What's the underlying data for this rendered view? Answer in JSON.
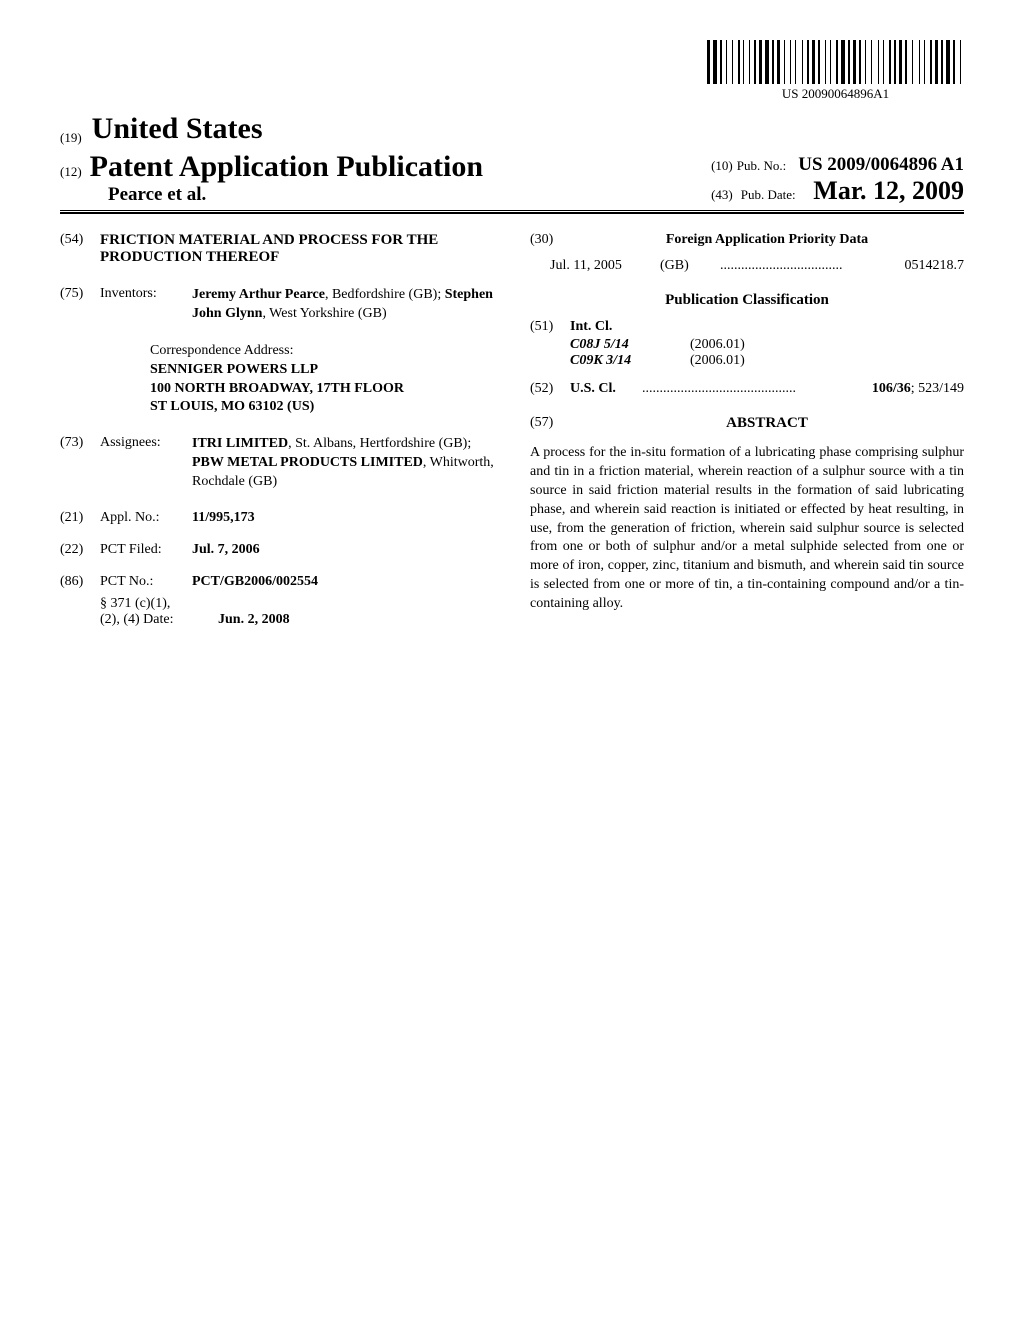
{
  "barcode_text": "US 20090064896A1",
  "office": {
    "code19": "(19)",
    "name": "United States"
  },
  "publication": {
    "code12": "(12)",
    "type": "Patent Application Publication",
    "authors_etal": "Pearce et al.",
    "pubno_code": "(10)",
    "pubno_label": "Pub. No.:",
    "pubno_value": "US 2009/0064896 A1",
    "pubdate_code": "(43)",
    "pubdate_label": "Pub. Date:",
    "pubdate_value": "Mar. 12, 2009"
  },
  "title": {
    "code": "(54)",
    "text": "FRICTION MATERIAL AND PROCESS FOR THE PRODUCTION THEREOF"
  },
  "inventors": {
    "code": "(75)",
    "label": "Inventors:",
    "line1_bold": "Jeremy Arthur Pearce",
    "line1_rest": ", Bedfordshire (GB); ",
    "line2_bold": "Stephen John Glynn",
    "line2_rest": ", West Yorkshire (GB)"
  },
  "correspondence": {
    "label": "Correspondence Address:",
    "line1": "SENNIGER POWERS LLP",
    "line2": "100 NORTH BROADWAY, 17TH FLOOR",
    "line3": "ST LOUIS, MO 63102 (US)"
  },
  "assignees": {
    "code": "(73)",
    "label": "Assignees:",
    "a1_bold": "ITRI LIMITED",
    "a1_rest": ", St. Albans, Hertfordshire (GB); ",
    "a2_bold": "PBW METAL PRODUCTS LIMITED",
    "a2_rest": ", Whitworth, Rochdale (GB)"
  },
  "applno": {
    "code": "(21)",
    "label": "Appl. No.:",
    "value": "11/995,173"
  },
  "pctfiled": {
    "code": "(22)",
    "label": "PCT Filed:",
    "value": "Jul. 7, 2006"
  },
  "pctno": {
    "code": "(86)",
    "label": "PCT No.:",
    "value": "PCT/GB2006/002554"
  },
  "p371": {
    "line1": "§ 371 (c)(1),",
    "line2_label": "(2), (4) Date:",
    "line2_value": "Jun. 2, 2008"
  },
  "foreign_priority": {
    "code": "(30)",
    "heading": "Foreign Application Priority Data",
    "date": "Jul. 11, 2005",
    "country": "(GB)",
    "dots": "...................................",
    "number": "0514218.7"
  },
  "pub_classification": {
    "heading": "Publication Classification",
    "intcl_code": "(51)",
    "intcl_label": "Int. Cl.",
    "ipc": [
      {
        "cls": "C08J 5/14",
        "ver": "(2006.01)"
      },
      {
        "cls": "C09K 3/14",
        "ver": "(2006.01)"
      }
    ],
    "uscl_code": "(52)",
    "uscl_label": "U.S. Cl.",
    "uscl_dots": "............................................",
    "uscl_primary": "106/36",
    "uscl_rest": "; 523/149"
  },
  "abstract": {
    "code": "(57)",
    "heading": "ABSTRACT",
    "text": "A process for the in-situ formation of a lubricating phase comprising sulphur and tin in a friction material, wherein reaction of a sulphur source with a tin source in said friction material results in the formation of said lubricating phase, and wherein said reaction is initiated or effected by heat resulting, in use, from the generation of friction, wherein said sulphur source is selected from one or both of sulphur and/or a metal sulphide selected from one or more of iron, copper, zinc, titanium and bismuth, and wherein said tin source is selected from one or more of tin, a tin-containing compound and/or a tin-containing alloy."
  },
  "barcode_widths": [
    3,
    1,
    4,
    1,
    2,
    2,
    1,
    3,
    1,
    3,
    2,
    1,
    1,
    3,
    1,
    2,
    2,
    1,
    3,
    1,
    4,
    1,
    2,
    1,
    3,
    2,
    1,
    3,
    1,
    2,
    1,
    4,
    1,
    2,
    2,
    1,
    3,
    1,
    2,
    3,
    1,
    2,
    1,
    3,
    2,
    1,
    4,
    1,
    2,
    1,
    3,
    1,
    2,
    2,
    1,
    3,
    1,
    4,
    1,
    2,
    1,
    3,
    2,
    1,
    2,
    1,
    3,
    1,
    2,
    3,
    1,
    4,
    1,
    2,
    1,
    3,
    2,
    1,
    3,
    1,
    2,
    1,
    4,
    1,
    2,
    3,
    1,
    2
  ]
}
